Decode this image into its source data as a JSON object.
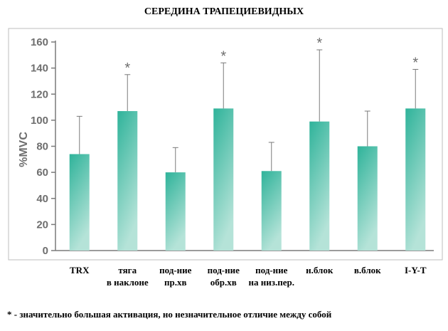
{
  "chart_data": {
    "type": "bar",
    "title": "СЕРЕДИНА ТРАПЕЦИЕВИДНЫХ",
    "ylabel": "%MVC",
    "xlabel": "",
    "ylim": [
      0,
      160
    ],
    "yticks": [
      0,
      20,
      40,
      60,
      80,
      100,
      120,
      140,
      160
    ],
    "grid": false,
    "categories": [
      [
        "TRX"
      ],
      [
        "тяга",
        "в наклоне"
      ],
      [
        "под-ние",
        "пр.хв"
      ],
      [
        "под-ние",
        "обр.хв"
      ],
      [
        "под-ние",
        "на низ.пер."
      ],
      [
        "н.блок"
      ],
      [
        "в.блок"
      ],
      [
        "I-Y-T"
      ]
    ],
    "values": [
      74,
      107,
      60,
      109,
      61,
      99,
      80,
      109
    ],
    "error_upper": [
      103,
      135,
      79,
      144,
      83,
      154,
      107,
      139
    ],
    "significant": [
      false,
      true,
      false,
      true,
      false,
      true,
      false,
      true
    ],
    "significance_marker": "*",
    "bar_color": "#2fb39a",
    "bar_color_light": "#b5e3d8",
    "footnote": "* - значительно большая активация, но незначительное отличие между собой"
  }
}
